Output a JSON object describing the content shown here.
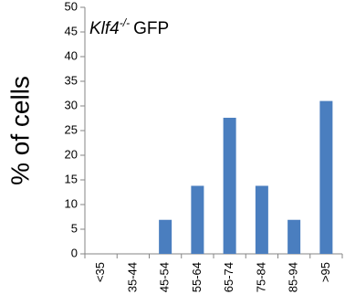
{
  "chart_data": {
    "type": "bar",
    "title_gene": "Klf4",
    "title_superscript": "-/-",
    "title_suffix": "GFP",
    "ylabel": "% of cells",
    "xlabel": "",
    "ylim": [
      0,
      50
    ],
    "yticks": [
      "0",
      "5",
      "10",
      "15",
      "20",
      "25",
      "30",
      "35",
      "40",
      "45",
      "50"
    ],
    "categories": [
      "<35",
      "35-44",
      "45-54",
      "55-64",
      "65-74",
      "75-84",
      "85-94",
      ">95"
    ],
    "values": [
      0,
      0,
      6.9,
      13.8,
      27.6,
      13.8,
      6.9,
      31.0
    ],
    "bar_color": "#4a7ebf",
    "grid": false,
    "legend": "none"
  }
}
